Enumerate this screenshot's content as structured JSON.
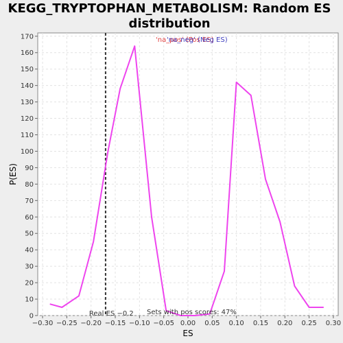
{
  "chart_data": {
    "type": "line",
    "title_line1": "KEGG_TRYPTOPHAN_METABOLISM: Random ES",
    "title_line2": "distribution",
    "xlabel": "ES",
    "ylabel": "P(ES)",
    "xlim": [
      -0.31,
      0.31
    ],
    "ylim": [
      0,
      172
    ],
    "xticks": [
      -0.3,
      -0.25,
      -0.2,
      -0.15,
      -0.1,
      -0.05,
      0.0,
      0.05,
      0.1,
      0.15,
      0.2,
      0.25,
      0.3
    ],
    "xtick_labels": [
      "−0.30",
      "−0.25",
      "−0.20",
      "−0.15",
      "−0.10",
      "−0.05",
      "0.00",
      "0.05",
      "0.10",
      "0.15",
      "0.20",
      "0.25",
      "0.30"
    ],
    "yticks": [
      0,
      10,
      20,
      30,
      40,
      50,
      60,
      70,
      80,
      90,
      100,
      110,
      120,
      130,
      140,
      150,
      160,
      170
    ],
    "grid": true,
    "series": [
      {
        "color": "#ee44ee",
        "x": [
          -0.285,
          -0.26,
          -0.225,
          -0.195,
          -0.165,
          -0.14,
          -0.11,
          -0.075,
          -0.045,
          -0.015,
          0.015,
          0.045,
          0.075,
          0.1,
          0.13,
          0.16,
          0.19,
          0.22,
          0.25,
          0.28
        ],
        "y": [
          7,
          5,
          12,
          45,
          100,
          138,
          164,
          60,
          3,
          0,
          0,
          1,
          27,
          142,
          134,
          83,
          57,
          18,
          5,
          5
        ]
      }
    ],
    "real_es": -0.17,
    "real_es_label": "Real ES −0.2",
    "pos_scores_label": "Sets with pos scores: 47%",
    "legend": {
      "position": "top-center",
      "items": [
        {
          "label": "'na_pos' (Pos ES)",
          "color": "#e04040"
        },
        {
          "label": "'na_neg' (Neg ES)",
          "color": "#4040c0"
        }
      ]
    }
  }
}
